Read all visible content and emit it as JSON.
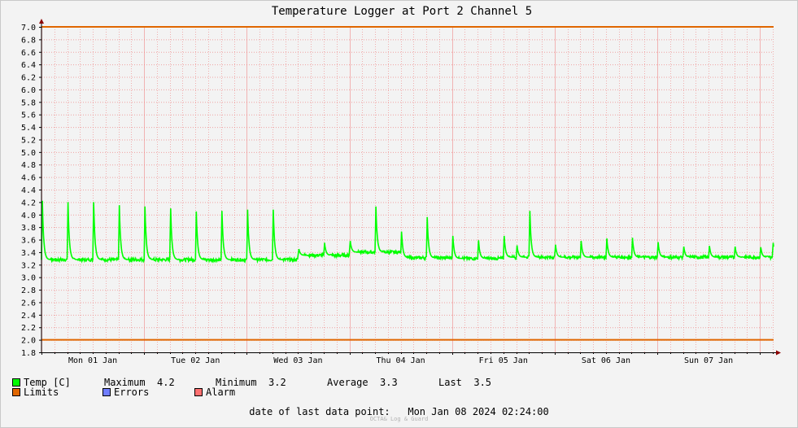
{
  "chart_data": {
    "type": "line",
    "title": "Temperature Logger at Port 2 Channel 5",
    "xlabel": "",
    "ylabel": "",
    "ylim": [
      1.8,
      7.0
    ],
    "y_ticks": [
      "7.0",
      "6.8",
      "6.6",
      "6.4",
      "6.2",
      "6.0",
      "5.8",
      "5.6",
      "5.4",
      "5.2",
      "5.0",
      "4.8",
      "4.6",
      "4.4",
      "4.2",
      "4.0",
      "3.8",
      "3.6",
      "3.4",
      "3.2",
      "3.0",
      "2.8",
      "2.6",
      "2.4",
      "2.2",
      "2.0",
      "1.8"
    ],
    "x_range_hours": [
      0,
      171.2
    ],
    "x_ticks": [
      {
        "label": "Mon 01 Jan",
        "hour": 12
      },
      {
        "label": "Tue 02 Jan",
        "hour": 36
      },
      {
        "label": "Wed 03 Jan",
        "hour": 60
      },
      {
        "label": "Thu 04 Jan",
        "hour": 84
      },
      {
        "label": "Fri 05 Jan",
        "hour": 108
      },
      {
        "label": "Sat 06 Jan",
        "hour": 132
      },
      {
        "label": "Sun 07 Jan",
        "hour": 156
      }
    ],
    "grid": true,
    "limits": [
      {
        "name": "Limits",
        "value": 7.0
      },
      {
        "name": "Limits",
        "value": 2.0
      }
    ],
    "series": [
      {
        "name": "Temp [C]",
        "baselines": [
          {
            "from": 0,
            "to": 60,
            "value": 3.28
          },
          {
            "from": 60,
            "to": 72,
            "value": 3.35
          },
          {
            "from": 72,
            "to": 84,
            "value": 3.4
          },
          {
            "from": 84,
            "to": 96,
            "value": 3.31
          },
          {
            "from": 96,
            "to": 108,
            "value": 3.3
          },
          {
            "from": 108,
            "to": 171.2,
            "value": 3.32
          }
        ],
        "spikes": [
          {
            "hour": 0.2,
            "value": 4.22
          },
          {
            "hour": 6.2,
            "value": 4.2
          },
          {
            "hour": 12.2,
            "value": 4.2
          },
          {
            "hour": 18.2,
            "value": 4.15
          },
          {
            "hour": 24.2,
            "value": 4.13
          },
          {
            "hour": 30.2,
            "value": 4.1
          },
          {
            "hour": 36.2,
            "value": 4.05
          },
          {
            "hour": 42.2,
            "value": 4.06
          },
          {
            "hour": 48.2,
            "value": 4.08
          },
          {
            "hour": 54.2,
            "value": 4.08
          },
          {
            "hour": 60.2,
            "value": 3.45
          },
          {
            "hour": 66.2,
            "value": 3.55
          },
          {
            "hour": 72.2,
            "value": 3.58
          },
          {
            "hour": 78.2,
            "value": 4.13
          },
          {
            "hour": 84.2,
            "value": 3.73
          },
          {
            "hour": 90.2,
            "value": 3.96
          },
          {
            "hour": 96.2,
            "value": 3.66
          },
          {
            "hour": 102.2,
            "value": 3.59
          },
          {
            "hour": 108.2,
            "value": 3.66
          },
          {
            "hour": 111.2,
            "value": 3.51
          },
          {
            "hour": 114.2,
            "value": 4.06
          },
          {
            "hour": 120.2,
            "value": 3.52
          },
          {
            "hour": 126.2,
            "value": 3.58
          },
          {
            "hour": 132.2,
            "value": 3.62
          },
          {
            "hour": 138.2,
            "value": 3.63
          },
          {
            "hour": 144.2,
            "value": 3.56
          },
          {
            "hour": 150.2,
            "value": 3.49
          },
          {
            "hour": 156.2,
            "value": 3.5
          },
          {
            "hour": 162.2,
            "value": 3.49
          },
          {
            "hour": 168.2,
            "value": 3.48
          },
          {
            "hour": 171.1,
            "value": 3.55
          }
        ]
      }
    ]
  },
  "colors": {
    "background": "#f3f3f3",
    "grid": "#f08080",
    "series": "#00ff00",
    "limits": "#e06600",
    "errors": "#6f7dff",
    "alarm": "#ff7070",
    "axis": "#000000",
    "arrow": "#8b0000"
  },
  "legend": {
    "temp_label": "Temp [C]",
    "maximum_label": "Maximum",
    "maximum_value": "4.2",
    "minimum_label": "Minimum",
    "minimum_value": "3.2",
    "average_label": "Average",
    "average_value": "3.3",
    "last_label": "Last",
    "last_value": "3.5",
    "limits_label": "Limits",
    "errors_label": "Errors",
    "alarm_label": "Alarm"
  },
  "footer": {
    "last_point_label": "date of last data point:",
    "last_point_value": "Mon Jan 08 2024 02:24:00",
    "credit": "OCTA& Log & Guard"
  }
}
